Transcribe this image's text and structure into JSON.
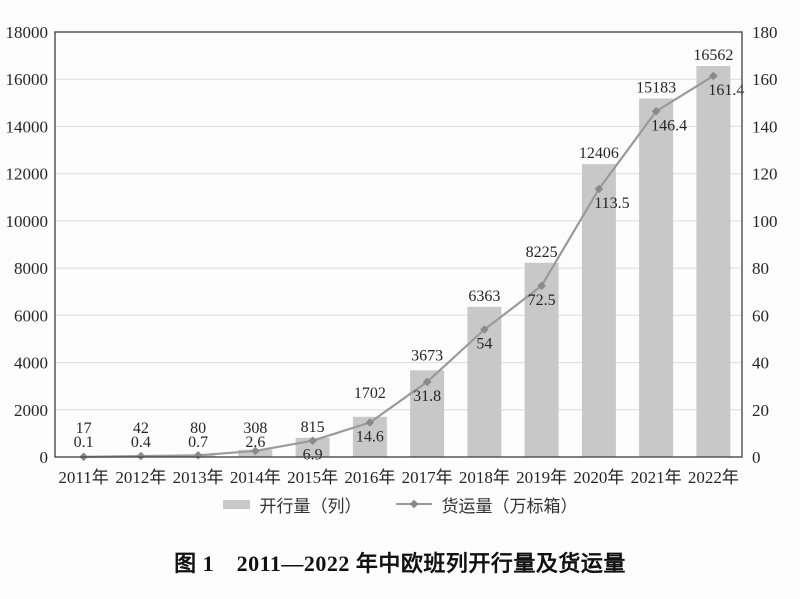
{
  "figure": {
    "caption": "图 1　2011—2022 年中欧班列开行量及货运量"
  },
  "legend": {
    "bars": "开行量（列）",
    "line": "货运量（万标箱）"
  },
  "colors": {
    "bar": "#c8c8c8",
    "line": "#9a9a9a",
    "marker": "#8a8a8a",
    "frame": "#4a4a4a",
    "grid": "#dcdcdc",
    "text": "#262626"
  },
  "chart_data": {
    "type": "bar",
    "subtype": "bar+line combo",
    "title": "图 1　2011—2022 年中欧班列开行量及货运量",
    "categories": [
      "2011年",
      "2012年",
      "2013年",
      "2014年",
      "2015年",
      "2016年",
      "2017年",
      "2018年",
      "2019年",
      "2020年",
      "2021年",
      "2022年"
    ],
    "series": [
      {
        "name": "开行量（列）",
        "type": "bar",
        "axis": "left",
        "values": [
          17,
          42,
          80,
          308,
          815,
          1702,
          3673,
          6363,
          8225,
          12406,
          15183,
          16562
        ]
      },
      {
        "name": "货运量（万标箱）",
        "type": "line",
        "axis": "right",
        "values": [
          0.1,
          0.4,
          0.7,
          2.6,
          6.9,
          14.6,
          31.8,
          54,
          72.5,
          113.5,
          146.4,
          161.4
        ]
      }
    ],
    "left_axis": {
      "min": 0,
      "max": 18000,
      "step": 2000
    },
    "right_axis": {
      "min": 0,
      "max": 180,
      "step": 20
    },
    "grid": true,
    "legend_position": "bottom",
    "xlabel": "",
    "ylabel_left": "",
    "ylabel_right": ""
  }
}
